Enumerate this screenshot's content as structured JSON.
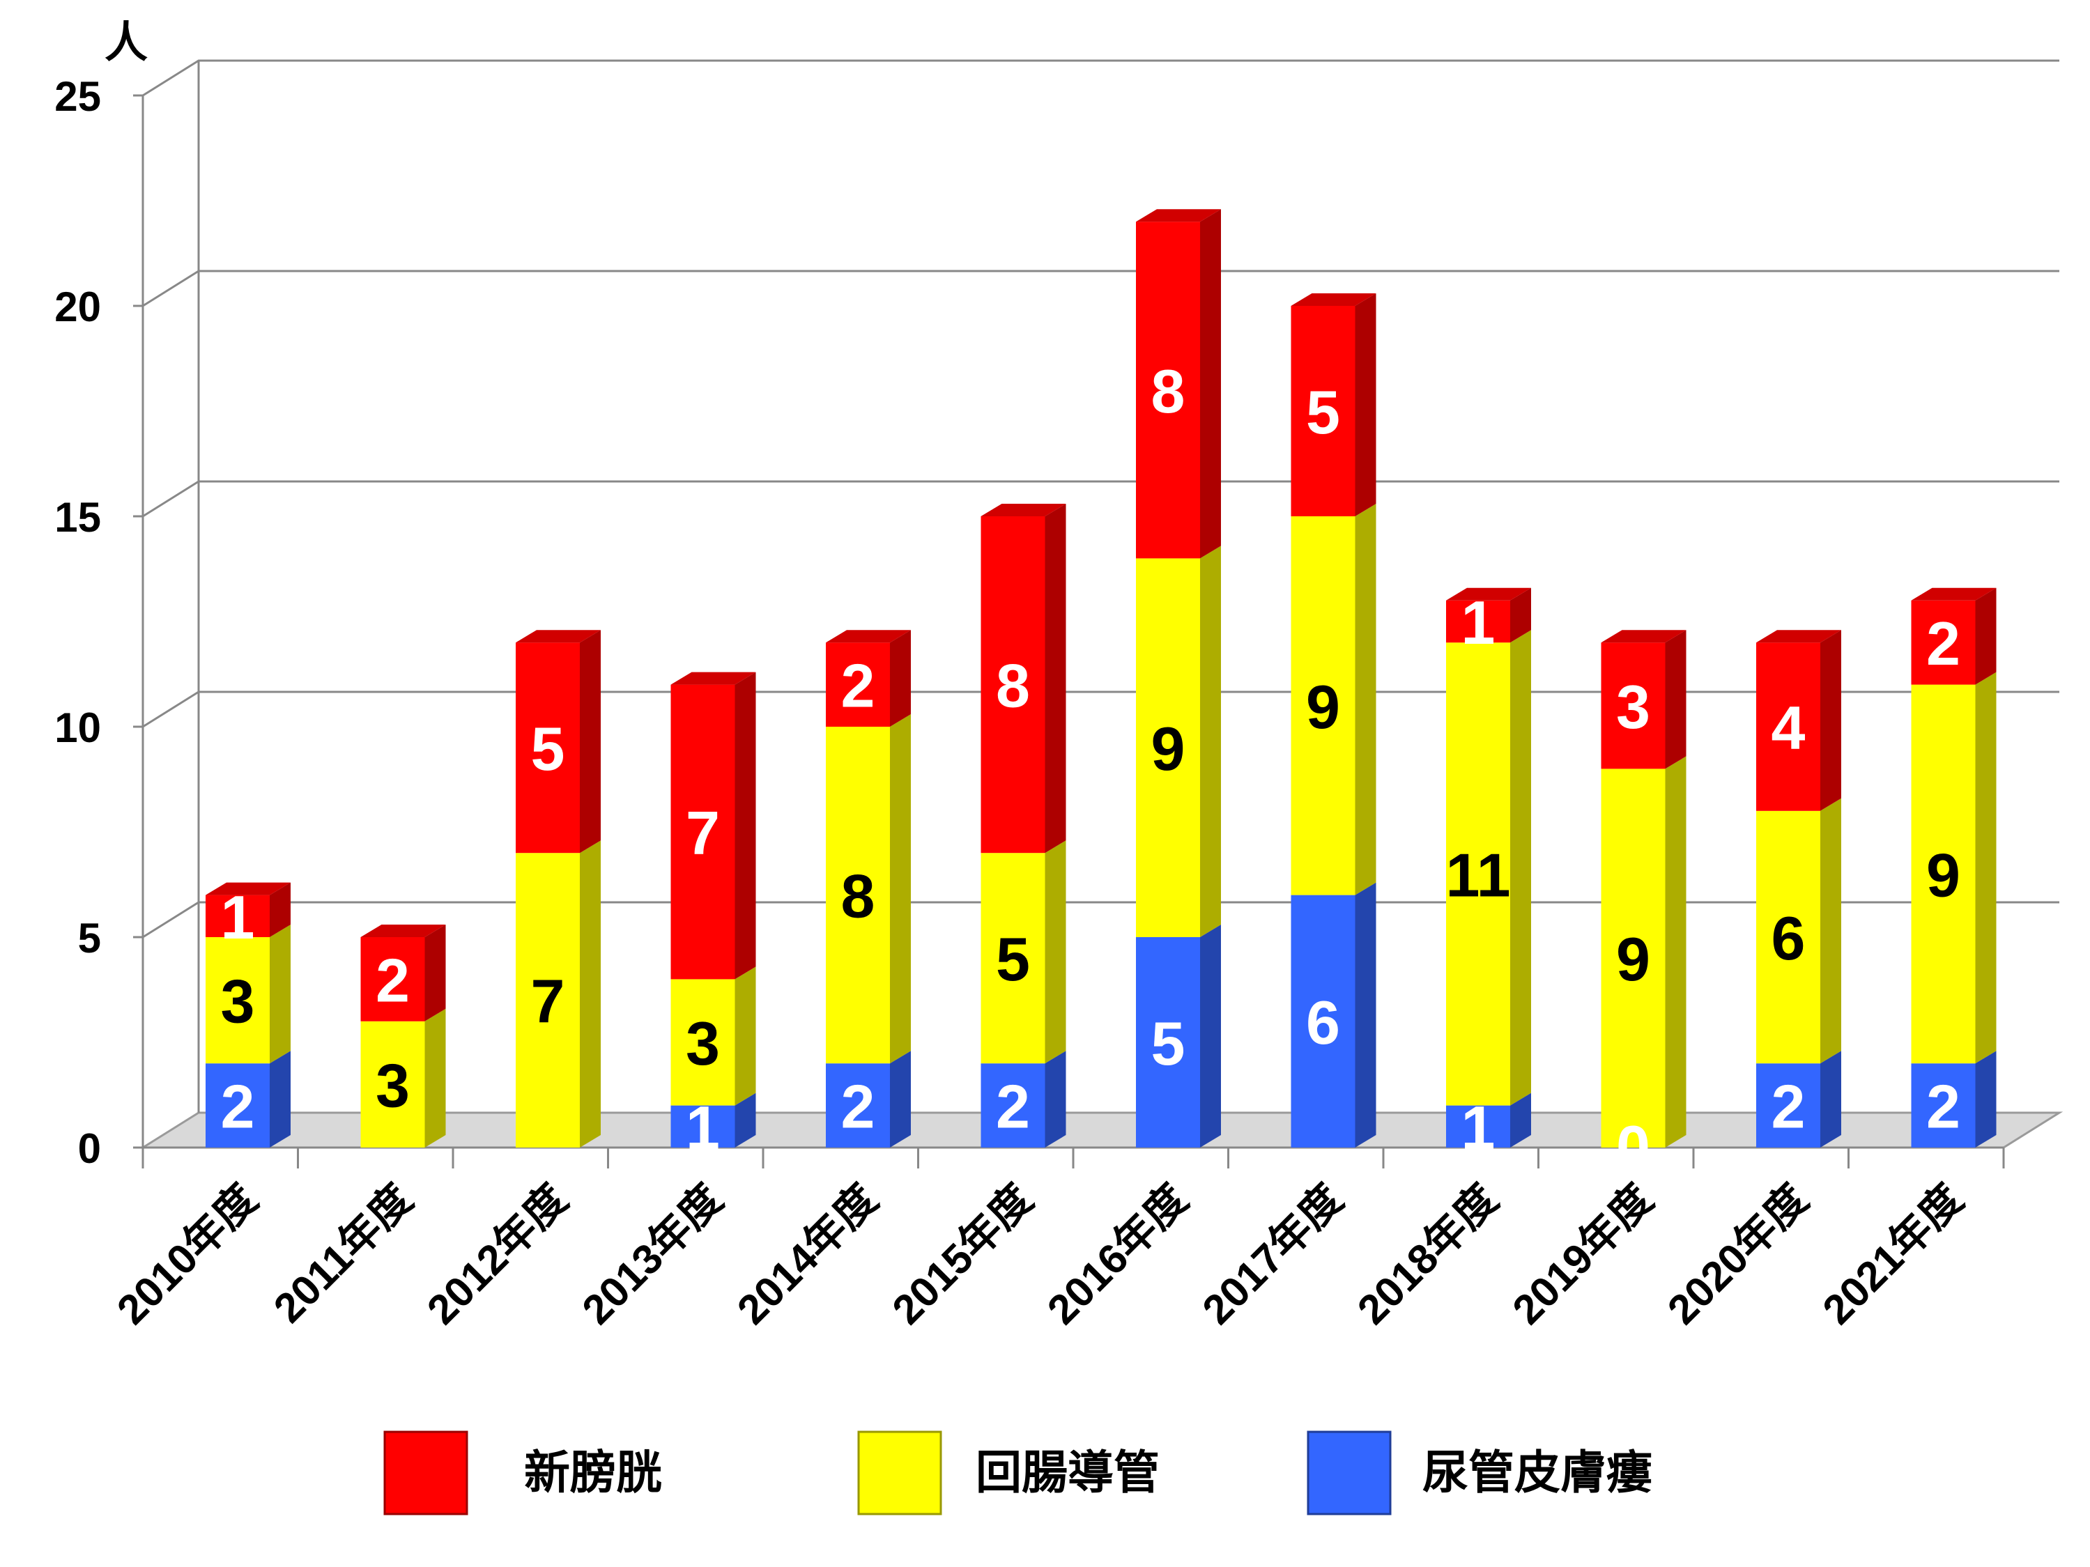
{
  "chart_data": {
    "type": "bar",
    "stacked": true,
    "style": "3d",
    "title": "",
    "xlabel": "",
    "ylabel": "人",
    "ylim": [
      0,
      25
    ],
    "yticks": [
      0,
      5,
      10,
      15,
      20,
      25
    ],
    "grid": true,
    "legend_position": "bottom",
    "categories": [
      "2010年度",
      "2011年度",
      "2012年度",
      "2013年度",
      "2014年度",
      "2015年度",
      "2016年度",
      "2017年度",
      "2018年度",
      "2019年度",
      "2020年度",
      "2021年度"
    ],
    "series": [
      {
        "name": "尿管皮膚瘻",
        "color": "#3366ff",
        "label_color": "#ffffff",
        "values": [
          2,
          null,
          null,
          1,
          2,
          2,
          5,
          6,
          1,
          0,
          2,
          2
        ]
      },
      {
        "name": "回腸導管",
        "color": "#ffff00",
        "label_color": "#000000",
        "values": [
          3,
          3,
          7,
          3,
          8,
          5,
          9,
          9,
          11,
          9,
          6,
          9
        ]
      },
      {
        "name": "新膀胱",
        "color": "#ff0000",
        "label_color": "#ffffff",
        "values": [
          1,
          2,
          5,
          7,
          2,
          8,
          8,
          5,
          1,
          3,
          4,
          2
        ]
      }
    ],
    "legend_order": [
      "新膀胱",
      "回腸導管",
      "尿管皮膚瘻"
    ]
  }
}
